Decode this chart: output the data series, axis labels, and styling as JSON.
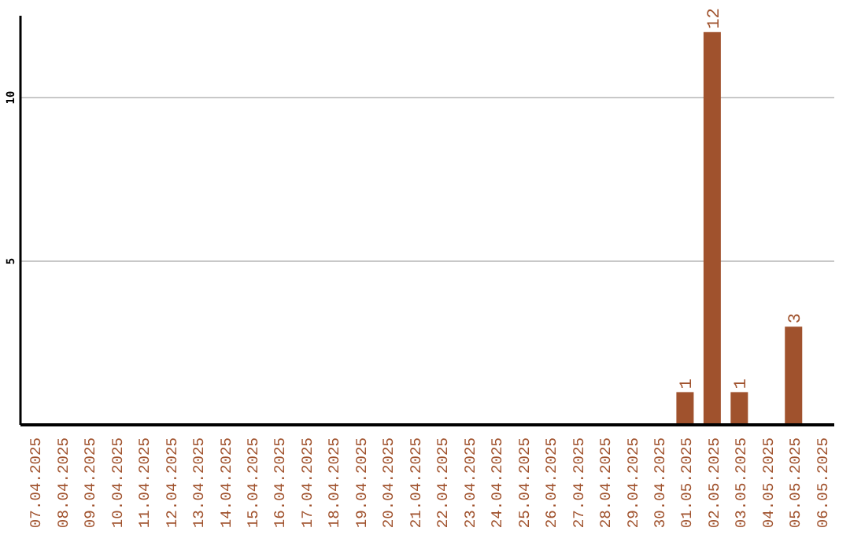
{
  "chart_data": {
    "type": "bar",
    "categories": [
      "07.04.2025",
      "08.04.2025",
      "09.04.2025",
      "10.04.2025",
      "11.04.2025",
      "12.04.2025",
      "13.04.2025",
      "14.04.2025",
      "15.04.2025",
      "16.04.2025",
      "17.04.2025",
      "18.04.2025",
      "19.04.2025",
      "20.04.2025",
      "21.04.2025",
      "22.04.2025",
      "23.04.2025",
      "24.04.2025",
      "25.04.2025",
      "26.04.2025",
      "27.04.2025",
      "28.04.2025",
      "29.04.2025",
      "30.04.2025",
      "01.05.2025",
      "02.05.2025",
      "03.05.2025",
      "04.05.2025",
      "05.05.2025",
      "06.05.2025"
    ],
    "values": [
      0,
      0,
      0,
      0,
      0,
      0,
      0,
      0,
      0,
      0,
      0,
      0,
      0,
      0,
      0,
      0,
      0,
      0,
      0,
      0,
      0,
      0,
      0,
      0,
      1,
      12,
      1,
      0,
      3,
      0
    ],
    "value_labels": [
      null,
      null,
      null,
      null,
      null,
      null,
      null,
      null,
      null,
      null,
      null,
      null,
      null,
      null,
      null,
      null,
      null,
      null,
      null,
      null,
      null,
      null,
      null,
      null,
      "1",
      "12",
      "1",
      null,
      "3",
      null
    ],
    "color": "#a0522d",
    "ylim": [
      0,
      12.5
    ],
    "yticks": [
      5,
      10
    ],
    "grid": "y"
  }
}
